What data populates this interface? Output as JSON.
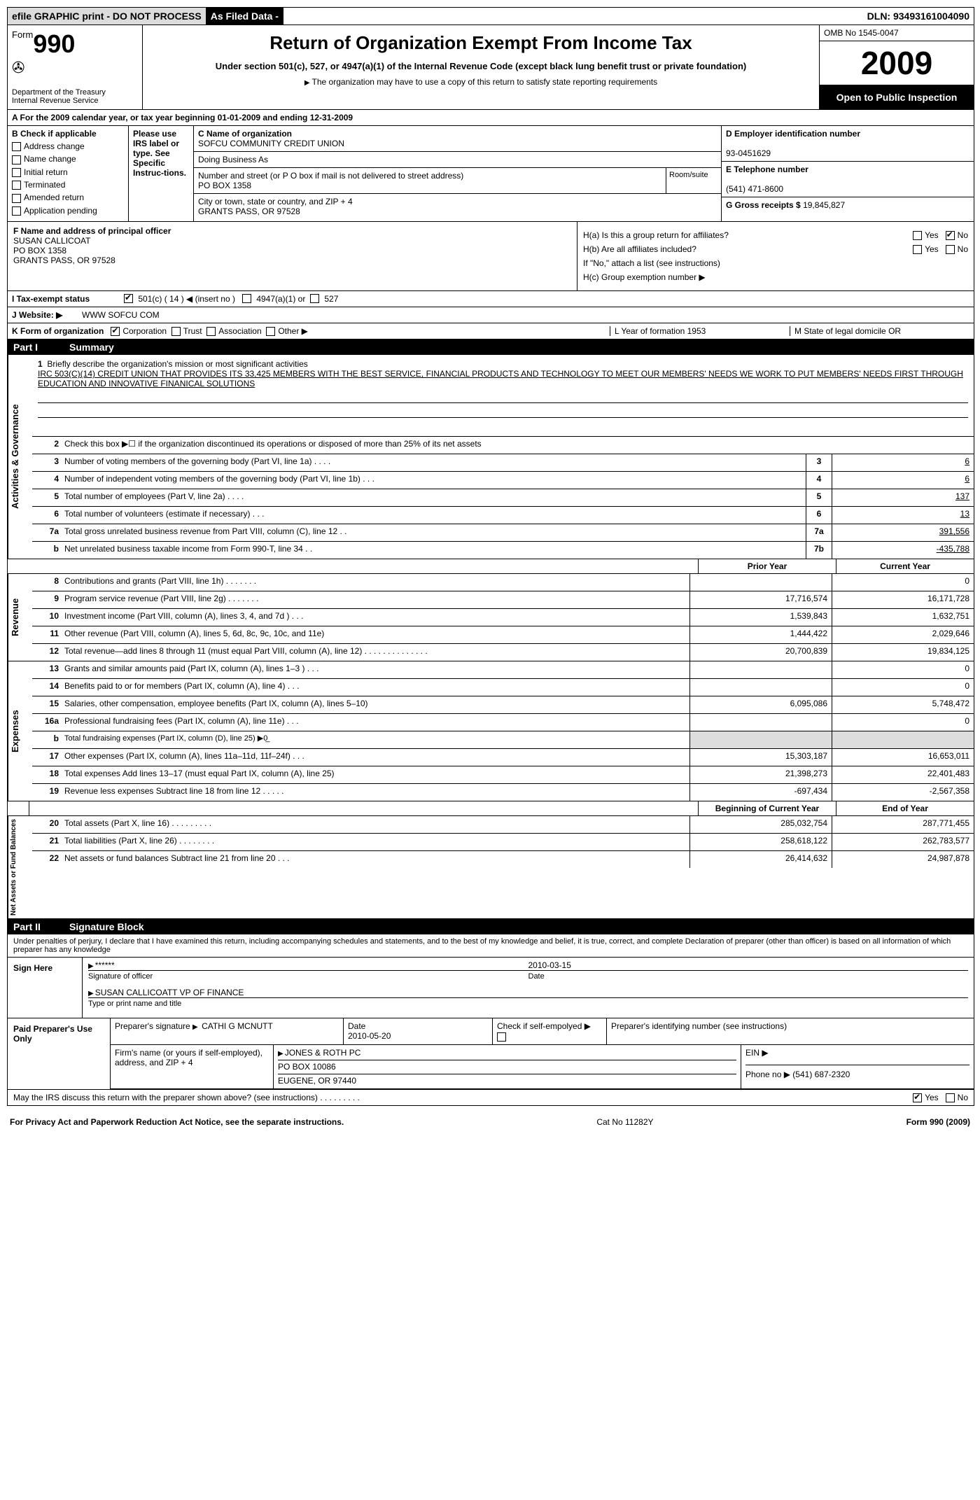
{
  "topbar": {
    "efile": "efile GRAPHIC print - DO NOT PROCESS",
    "asfiled": "As Filed Data -",
    "dln_label": "DLN:",
    "dln": "93493161004090"
  },
  "header": {
    "form_word": "Form",
    "form_no": "990",
    "dept": "Department of the Treasury\nInternal Revenue Service",
    "title": "Return of Organization Exempt From Income Tax",
    "subtitle": "Under section 501(c), 527, or 4947(a)(1) of the Internal Revenue Code (except black lung benefit trust or private foundation)",
    "note": "The organization may have to use a copy of this return to satisfy state reporting requirements",
    "omb": "OMB No 1545-0047",
    "year": "2009",
    "open": "Open to Public Inspection"
  },
  "row_a": "A  For the 2009 calendar year, or tax year beginning 01-01-2009    and ending 12-31-2009",
  "sec_b": {
    "heading": "B  Check if applicable",
    "items": [
      "Address change",
      "Name change",
      "Initial return",
      "Terminated",
      "Amended return",
      "Application pending"
    ],
    "please": "Please use IRS label or type. See Specific Instruc-tions.",
    "c_label": "C Name of organization",
    "c_name": "SOFCU COMMUNITY CREDIT UNION",
    "dba_label": "Doing Business As",
    "street_label": "Number and street (or P O  box if mail is not delivered to street address)",
    "street": "PO BOX 1358",
    "room_label": "Room/suite",
    "city_label": "City or town, state or country, and ZIP + 4",
    "city": "GRANTS PASS, OR  97528",
    "d_label": "D Employer identification number",
    "d_val": "93-0451629",
    "e_label": "E Telephone number",
    "e_val": "(541) 471-8600",
    "g_label": "G Gross receipts $",
    "g_val": "19,845,827"
  },
  "sec_f": {
    "label": "F   Name and address of principal officer",
    "name": "SUSAN CALLICOAT",
    "addr1": "PO BOX 1358",
    "addr2": "GRANTS PASS, OR  97528"
  },
  "sec_h": {
    "ha": "H(a)  Is this a group return for affiliates?",
    "hb": "H(b)  Are all affiliates included?",
    "hb_note": "If \"No,\" attach a list  (see instructions)",
    "hc": "H(c)   Group exemption number ▶",
    "yes": "Yes",
    "no": "No"
  },
  "line_i": {
    "label": "I   Tax-exempt status",
    "c501": "501(c) ( 14 ) ◀ (insert no )",
    "c4947": "4947(a)(1) or",
    "c527": "527"
  },
  "line_j": {
    "label": "J   Website: ▶",
    "val": "WWW SOFCU COM"
  },
  "line_k": {
    "left": "K Form of organization",
    "corp": "Corporation",
    "trust": "Trust",
    "assoc": "Association",
    "other": "Other ▶",
    "l": "L Year of formation  1953",
    "m": "M State of legal domicile  OR"
  },
  "part1": {
    "label": "Part I",
    "title": "Summary"
  },
  "vlabels": {
    "gov": "Activities & Governance",
    "rev": "Revenue",
    "exp": "Expenses",
    "net": "Net Assets or Fund Balances"
  },
  "mission": {
    "num": "1",
    "label": "Briefly describe the organization's mission or most significant activities",
    "text": "IRC 503(C)(14) CREDIT UNION THAT PROVIDES ITS 33,425 MEMBERS WITH THE BEST SERVICE, FINANCIAL PRODUCTS AND TECHNOLOGY TO MEET OUR MEMBERS' NEEDS  WE WORK TO PUT MEMBERS' NEEDS FIRST THROUGH EDUCATION AND INNOVATIVE FINANICAL SOLUTIONS"
  },
  "gov_lines": [
    {
      "n": "2",
      "d": "Check this box ▶☐ if the organization discontinued its operations or disposed of more than 25% of its net assets",
      "rn": "",
      "v": ""
    },
    {
      "n": "3",
      "d": "Number of voting members of the governing body (Part VI, line 1a)     .     .     .     .",
      "rn": "3",
      "v": "6"
    },
    {
      "n": "4",
      "d": "Number of independent voting members of the governing body (Part VI, line 1b)    .    .    .",
      "rn": "4",
      "v": "6"
    },
    {
      "n": "5",
      "d": "Total number of employees (Part V, line 2a)    .    .    .    .",
      "rn": "5",
      "v": "137"
    },
    {
      "n": "6",
      "d": "Total number of volunteers (estimate if necessary)    .    .    .",
      "rn": "6",
      "v": "13"
    },
    {
      "n": "7a",
      "d": "Total gross unrelated business revenue from Part VIII, column (C), line 12   .   .",
      "rn": "7a",
      "v": "391,556"
    },
    {
      "n": "b",
      "d": "Net unrelated business taxable income from Form 990-T, line 34   .   .",
      "rn": "7b",
      "v": "-435,788"
    }
  ],
  "col_hdrs": {
    "prior": "Prior Year",
    "current": "Current Year"
  },
  "rev_lines": [
    {
      "n": "8",
      "d": "Contributions and grants (Part VIII, line 1h)   .   .   .   .   .   .   .",
      "p": "",
      "c": "0"
    },
    {
      "n": "9",
      "d": "Program service revenue (Part VIII, line 2g)   .   .   .   .   .   .   .",
      "p": "17,716,574",
      "c": "16,171,728"
    },
    {
      "n": "10",
      "d": "Investment income (Part VIII, column (A), lines 3, 4, and 7d )   .   .   .",
      "p": "1,539,843",
      "c": "1,632,751"
    },
    {
      "n": "11",
      "d": "Other revenue (Part VIII, column (A), lines 5, 6d, 8c, 9c, 10c, and 11e)",
      "p": "1,444,422",
      "c": "2,029,646"
    },
    {
      "n": "12",
      "d": "Total revenue—add lines 8 through 11 (must equal Part VIII, column (A), line 12)   .   .   .   .   .   .   .   .   .   .   .   .   .   .",
      "p": "20,700,839",
      "c": "19,834,125"
    }
  ],
  "exp_lines": [
    {
      "n": "13",
      "d": "Grants and similar amounts paid (Part IX, column (A), lines 1–3 )   .   .   .",
      "p": "",
      "c": "0"
    },
    {
      "n": "14",
      "d": "Benefits paid to or for members (Part IX, column (A), line 4)   .   .   .",
      "p": "",
      "c": "0"
    },
    {
      "n": "15",
      "d": "Salaries, other compensation, employee benefits (Part IX, column (A), lines 5–10)",
      "p": "6,095,086",
      "c": "5,748,472"
    },
    {
      "n": "16a",
      "d": "Professional fundraising fees (Part IX, column (A), line 11e)   .   .   .",
      "p": "",
      "c": "0"
    },
    {
      "n": "b",
      "d": "Total fundraising expenses (Part IX, column (D), line 25) ▶0̲",
      "p": "",
      "c": "",
      "noval": true
    },
    {
      "n": "17",
      "d": "Other expenses (Part IX, column (A), lines 11a–11d, 11f–24f)   .   .   .",
      "p": "15,303,187",
      "c": "16,653,011"
    },
    {
      "n": "18",
      "d": "Total expenses  Add lines 13–17 (must equal Part IX, column (A), line 25)",
      "p": "21,398,273",
      "c": "22,401,483"
    },
    {
      "n": "19",
      "d": "Revenue less expenses  Subtract line 18 from line 12   .   .   .   .   .",
      "p": "-697,434",
      "c": "-2,567,358"
    }
  ],
  "net_hdrs": {
    "begin": "Beginning of Current Year",
    "end": "End of Year"
  },
  "net_lines": [
    {
      "n": "20",
      "d": "Total assets (Part X, line 16)   .   .   .   .   .   .   .   .   .",
      "p": "285,032,754",
      "c": "287,771,455"
    },
    {
      "n": "21",
      "d": "Total liabilities (Part X, line 26)   .   .   .   .   .   .   .   .",
      "p": "258,618,122",
      "c": "262,783,577"
    },
    {
      "n": "22",
      "d": "Net assets or fund balances  Subtract line 21 from line 20   .   .   .",
      "p": "26,414,632",
      "c": "24,987,878"
    }
  ],
  "part2": {
    "label": "Part II",
    "title": "Signature Block"
  },
  "penalty": "Under penalties of perjury, I declare that I have examined this return, including accompanying schedules and statements, and to the best of my knowledge and belief, it is true, correct, and complete  Declaration of preparer (other than officer) is based on all information of which preparer has any knowledge",
  "sign": {
    "here": "Sign Here",
    "stars": "******",
    "sig_of": "Signature of officer",
    "date": "2010-03-15",
    "date_label": "Date",
    "name": "SUSAN CALLICOATT VP OF FINANCE",
    "name_label": "Type or print name and title"
  },
  "prep": {
    "label": "Paid Preparer's Use Only",
    "sig_label": "Preparer's signature",
    "sig": "CATHI G MCNUTT",
    "date_label": "Date",
    "date": "2010-05-20",
    "check_label": "Check if self-empolyed ▶",
    "pin_label": "Preparer's identifying number (see instructions)",
    "firm_label": "Firm's name (or yours if self-employed), address, and ZIP + 4",
    "firm": "JONES & ROTH PC",
    "firm_addr1": "PO BOX 10086",
    "firm_addr2": "EUGENE, OR  97440",
    "ein_label": "EIN ▶",
    "phone_label": "Phone no  ▶",
    "phone": "(541) 687-2320"
  },
  "discuss": {
    "q": "May the IRS discuss this return with the preparer shown above? (see instructions)   .   .   .   .   .   .   .   .   .",
    "yes": "Yes",
    "no": "No"
  },
  "footer": {
    "left": "For Privacy Act and Paperwork Reduction Act Notice, see the separate instructions.",
    "mid": "Cat  No  11282Y",
    "right": "Form 990 (2009)"
  }
}
